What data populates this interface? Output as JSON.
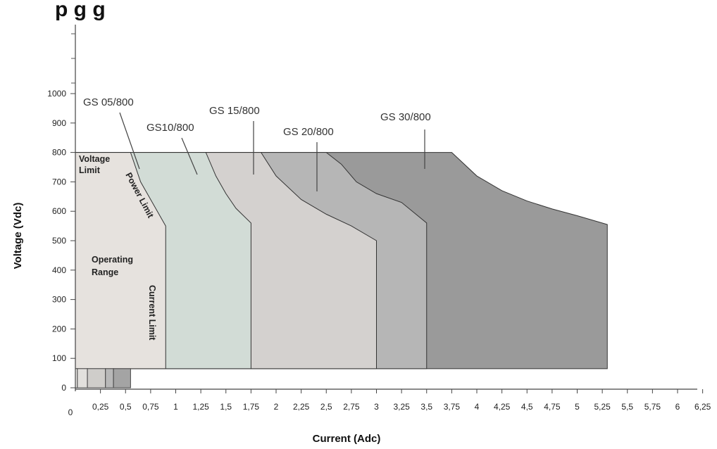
{
  "chart_data": {
    "type": "area",
    "xlabel": "Current (Adc)",
    "ylabel": "Voltage (Vdc)",
    "xlim": [
      0,
      6.5
    ],
    "ylim": [
      0,
      1000
    ],
    "x_origin_label": "0",
    "x_ticks": [
      {
        "v": 0.25,
        "t": "0,25"
      },
      {
        "v": 0.5,
        "t": "0,5"
      },
      {
        "v": 0.75,
        "t": "0,75"
      },
      {
        "v": 1,
        "t": "1"
      },
      {
        "v": 1.25,
        "t": "1,25"
      },
      {
        "v": 1.5,
        "t": "1,5"
      },
      {
        "v": 1.75,
        "t": "1,75"
      },
      {
        "v": 2,
        "t": "2"
      },
      {
        "v": 2.25,
        "t": "2,25"
      },
      {
        "v": 2.5,
        "t": "2,5"
      },
      {
        "v": 2.75,
        "t": "2,75"
      },
      {
        "v": 3,
        "t": "3"
      },
      {
        "v": 3.25,
        "t": "3,25"
      },
      {
        "v": 3.5,
        "t": "3,5"
      },
      {
        "v": 3.75,
        "t": "3,75"
      },
      {
        "v": 4,
        "t": "4"
      },
      {
        "v": 4.25,
        "t": "4,25"
      },
      {
        "v": 4.5,
        "t": "4,5"
      },
      {
        "v": 4.75,
        "t": "4,75"
      },
      {
        "v": 5,
        "t": "5"
      },
      {
        "v": 5.25,
        "t": "5,25"
      },
      {
        "v": 5.5,
        "t": "5,5"
      },
      {
        "v": 5.75,
        "t": "5,75"
      },
      {
        "v": 6,
        "t": "6"
      },
      {
        "v": 6.25,
        "t": "6,25"
      }
    ],
    "y_ticks": [
      {
        "v": 0,
        "t": "0"
      },
      {
        "v": 100,
        "t": "100"
      },
      {
        "v": 200,
        "t": "200"
      },
      {
        "v": 300,
        "t": "300"
      },
      {
        "v": 400,
        "t": "400"
      },
      {
        "v": 500,
        "t": "500"
      },
      {
        "v": 600,
        "t": "600"
      },
      {
        "v": 700,
        "t": "700"
      },
      {
        "v": 800,
        "t": "800"
      },
      {
        "v": 900,
        "t": "900"
      },
      {
        "v": 1000,
        "t": "1000"
      }
    ],
    "minimum_voltage": 65,
    "voltage_limit": 800,
    "series": [
      {
        "name": "GS 30/800",
        "color": "#9a9a9a",
        "max_current": 5.3,
        "curve": [
          [
            3.75,
            800
          ],
          [
            4.0,
            720
          ],
          [
            4.25,
            670
          ],
          [
            4.5,
            635
          ],
          [
            4.75,
            608
          ],
          [
            5.0,
            585
          ],
          [
            5.3,
            555
          ]
        ]
      },
      {
        "name": "GS 20/800",
        "color": "#b6b6b6",
        "max_current": 3.5,
        "curve": [
          [
            2.5,
            800
          ],
          [
            2.65,
            760
          ],
          [
            2.8,
            700
          ],
          [
            3.0,
            660
          ],
          [
            3.25,
            630
          ],
          [
            3.5,
            560
          ]
        ]
      },
      {
        "name": "GS 15/800",
        "color": "#d4d1cf",
        "max_current": 3.0,
        "curve": [
          [
            1.85,
            800
          ],
          [
            2.0,
            720
          ],
          [
            2.25,
            640
          ],
          [
            2.5,
            590
          ],
          [
            2.75,
            550
          ],
          [
            3.0,
            500
          ]
        ]
      },
      {
        "name": "GS10/800",
        "color": "#d2dcd6",
        "max_current": 1.75,
        "curve": [
          [
            1.3,
            800
          ],
          [
            1.4,
            720
          ],
          [
            1.5,
            660
          ],
          [
            1.6,
            610
          ],
          [
            1.75,
            560
          ]
        ]
      },
      {
        "name": "GS 05/800",
        "color": "#e6e2de",
        "max_current": 0.9,
        "curve": [
          [
            0.55,
            800
          ],
          [
            0.65,
            700
          ],
          [
            0.75,
            640
          ],
          [
            0.9,
            550
          ]
        ]
      }
    ],
    "model_labels": [
      "GS 05/800",
      "GS10/800",
      "GS 15/800",
      "GS 20/800",
      "GS 30/800"
    ],
    "region_labels": {
      "voltage_limit": [
        "Voltage",
        "Limit"
      ],
      "power_limit": "Power Limit",
      "operating_range": [
        "Operating",
        "Range"
      ],
      "current_limit": "Current Limit"
    },
    "low_current_bars": {
      "x_start": 0.0,
      "x_end": 0.55,
      "voltage": 65
    }
  }
}
